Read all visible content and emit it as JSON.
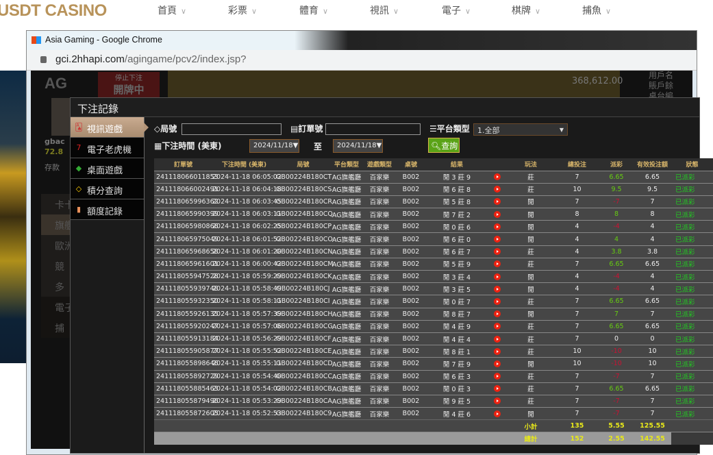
{
  "site": {
    "logo": "USDT CASINO",
    "nav": [
      "首頁",
      "彩票",
      "體育",
      "視訊",
      "電子",
      "棋牌",
      "捕魚"
    ]
  },
  "browser": {
    "title": "Asia Gaming - Google Chrome",
    "url_host": "gci.2hhapi.com",
    "url_path": "/agingame/pcv2/index.jsp?"
  },
  "game_bg": {
    "logo": "AG",
    "stop_bet": "停止下注",
    "dealing": "開牌中",
    "user_prefix": "gbac",
    "balance_prefix": "72.8",
    "deposit": "存款",
    "right_info": [
      "用戶名",
      "賬戶餘",
      "桌台編"
    ],
    "big_number": "368,612.00",
    "menu": [
      "卡卡",
      "旗艦",
      "歐洲",
      "競",
      "多",
      "電子",
      "捕"
    ]
  },
  "modal": {
    "title": "下注記錄",
    "sidebar": [
      {
        "label": "視訊遊戲",
        "icon": "cards-icon",
        "active": true
      },
      {
        "label": "電子老虎機",
        "icon": "slot-777-icon"
      },
      {
        "label": "桌面遊戲",
        "icon": "dice-icon"
      },
      {
        "label": "積分查詢",
        "icon": "diamond-icon"
      },
      {
        "label": "額度記錄",
        "icon": "document-icon"
      }
    ],
    "filters": {
      "round_label": "局號",
      "round_value": "",
      "order_label": "訂單號",
      "order_value": "",
      "platform_label": "平台類型",
      "platform_value": "1.全部",
      "time_label": "下注時間 (美東)",
      "date_from": "2024/11/18",
      "to_label": "至",
      "date_to": "2024/11/18",
      "query_button": "查詢"
    },
    "columns": [
      "訂單號",
      "下注時間 (美東)",
      "局號",
      "平台類型",
      "遊戲類型",
      "桌號",
      "結果",
      "",
      "玩法",
      "總投注",
      "派彩",
      "有效投注額",
      "狀態"
    ],
    "rows": [
      [
        "241118066011853",
        "2024-11-18 06:05:02",
        "GB00224B180CT",
        "AG旗艦廳",
        "百家樂",
        "B002",
        "閒 3 莊 9",
        "莊",
        "7",
        "6.65",
        "6.65",
        "已派彩"
      ],
      [
        "241118066002491",
        "2024-11-18 06:04:18",
        "GB00224B180CS",
        "AG旗艦廳",
        "百家樂",
        "B002",
        "閒 6 莊 8",
        "莊",
        "10",
        "9.5",
        "9.5",
        "已派彩"
      ],
      [
        "241118065996362",
        "2024-11-18 06:03:45",
        "GB00224B180CR",
        "AG旗艦廳",
        "百家樂",
        "B002",
        "閒 5 莊 8",
        "閒",
        "7",
        "-7",
        "7",
        "已派彩"
      ],
      [
        "241118065990399",
        "2024-11-18 06:03:11",
        "GB00224B180CQ",
        "AG旗艦廳",
        "百家樂",
        "B002",
        "閒 7 莊 2",
        "閒",
        "8",
        "8",
        "8",
        "已派彩"
      ],
      [
        "241118065980866",
        "2024-11-18 06:02:25",
        "GB00224B180CP",
        "AG旗艦廳",
        "百家樂",
        "B002",
        "閒 0 莊 6",
        "閒",
        "4",
        "-4",
        "4",
        "已派彩"
      ],
      [
        "241118065975049",
        "2024-11-18 06:01:52",
        "GB00224B180CO",
        "AG旗艦廳",
        "百家樂",
        "B002",
        "閒 6 莊 0",
        "閒",
        "4",
        "4",
        "4",
        "已派彩"
      ],
      [
        "241118065968658",
        "2024-11-18 06:01:20",
        "GB00224B180CN",
        "AG旗艦廳",
        "百家樂",
        "B002",
        "閒 6 莊 7",
        "莊",
        "4",
        "3.8",
        "3.8",
        "已派彩"
      ],
      [
        "241118065961601",
        "2024-11-18 06:00:42",
        "GB00224B180CM",
        "AG旗艦廳",
        "百家樂",
        "B002",
        "閒 5 莊 9",
        "莊",
        "7",
        "6.65",
        "6.65",
        "已派彩"
      ],
      [
        "241118055947528",
        "2024-11-18 05:59:29",
        "GB00224B180CK",
        "AG旗艦廳",
        "百家樂",
        "B002",
        "閒 3 莊 4",
        "閒",
        "4",
        "-4",
        "4",
        "已派彩"
      ],
      [
        "241118055939748",
        "2024-11-18 05:58:49",
        "GB00224B180CJ",
        "AG旗艦廳",
        "百家樂",
        "B002",
        "閒 3 莊 5",
        "閒",
        "4",
        "-4",
        "4",
        "已派彩"
      ],
      [
        "241118055932350",
        "2024-11-18 05:58:11",
        "GB00224B180CI",
        "AG旗艦廳",
        "百家樂",
        "B002",
        "閒 0 莊 7",
        "莊",
        "7",
        "6.65",
        "6.65",
        "已派彩"
      ],
      [
        "241118055926135",
        "2024-11-18 05:57:39",
        "GB00224B180CH",
        "AG旗艦廳",
        "百家樂",
        "B002",
        "閒 8 莊 7",
        "閒",
        "7",
        "7",
        "7",
        "已派彩"
      ],
      [
        "241118055920247",
        "2024-11-18 05:57:06",
        "GB00224B180CG",
        "AG旗艦廳",
        "百家樂",
        "B002",
        "閒 4 莊 9",
        "莊",
        "7",
        "6.65",
        "6.65",
        "已派彩"
      ],
      [
        "241118055913184",
        "2024-11-18 05:56:29",
        "GB00224B180CF",
        "AG旗艦廳",
        "百家樂",
        "B002",
        "閒 4 莊 4",
        "莊",
        "7",
        "0",
        "0",
        "已派彩"
      ],
      [
        "241118055905877",
        "2024-11-18 05:55:52",
        "GB00224B180CE",
        "AG旗艦廳",
        "百家樂",
        "B002",
        "閒 8 莊 1",
        "莊",
        "10",
        "-10",
        "10",
        "已派彩"
      ],
      [
        "241118055898646",
        "2024-11-18 05:55:11",
        "GB00224B180CD",
        "AG旗艦廳",
        "百家樂",
        "B002",
        "閒 7 莊 9",
        "閒",
        "10",
        "-10",
        "10",
        "已派彩"
      ],
      [
        "241118055892729",
        "2024-11-18 05:54:40",
        "GB00224B180CC",
        "AG旗艦廳",
        "百家樂",
        "B002",
        "閒 6 莊 3",
        "莊",
        "7",
        "-7",
        "7",
        "已派彩"
      ],
      [
        "241118055885463",
        "2024-11-18 05:54:02",
        "GB00224B180CB",
        "AG旗艦廳",
        "百家樂",
        "B002",
        "閒 0 莊 3",
        "莊",
        "7",
        "6.65",
        "6.65",
        "已派彩"
      ],
      [
        "241118055879496",
        "2024-11-18 05:53:29",
        "GB00224B180CA",
        "AG旗艦廳",
        "百家樂",
        "B002",
        "閒 9 莊 5",
        "莊",
        "7",
        "-7",
        "7",
        "已派彩"
      ],
      [
        "241118055872605",
        "2024-11-18 05:52:53",
        "GB00224B180C9",
        "AG旗艦廳",
        "百家樂",
        "B002",
        "閒 4 莊 6",
        "閒",
        "7",
        "-7",
        "7",
        "已派彩"
      ]
    ],
    "subtotal": {
      "label": "小計",
      "total_bet": "135",
      "payout": "5.55",
      "valid_bet": "125.55"
    },
    "total": {
      "label": "總計",
      "total_bet": "152",
      "payout": "2.55",
      "valid_bet": "142.55"
    }
  },
  "colors": {
    "win": "#66cc11",
    "loss": "#cc1133",
    "status": "#22cc22",
    "accent": "#d8b56a",
    "query": "#5aa317"
  }
}
